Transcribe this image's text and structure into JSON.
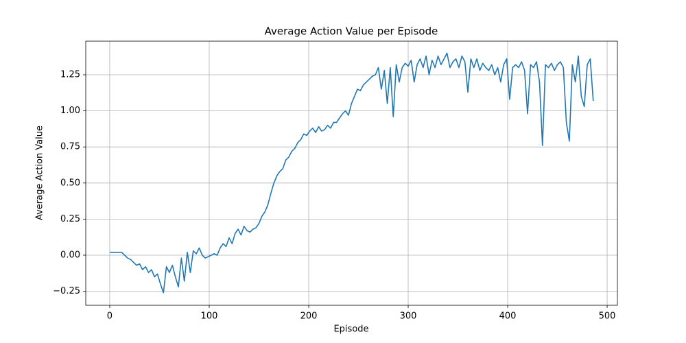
{
  "chart_data": {
    "type": "line",
    "title": "Average Action Value per Episode",
    "xlabel": "Episode",
    "ylabel": "Average Action Value",
    "x": [
      0,
      3,
      6,
      9,
      12,
      15,
      18,
      21,
      24,
      27,
      30,
      33,
      36,
      39,
      42,
      45,
      48,
      51,
      54,
      57,
      60,
      63,
      66,
      69,
      72,
      75,
      78,
      81,
      84,
      87,
      90,
      93,
      96,
      99,
      102,
      105,
      108,
      111,
      114,
      117,
      120,
      123,
      126,
      129,
      132,
      135,
      138,
      141,
      144,
      147,
      150,
      153,
      156,
      159,
      162,
      165,
      168,
      171,
      174,
      177,
      180,
      183,
      186,
      189,
      192,
      195,
      198,
      201,
      204,
      207,
      210,
      213,
      216,
      219,
      222,
      225,
      228,
      231,
      234,
      237,
      240,
      243,
      246,
      249,
      252,
      255,
      258,
      261,
      264,
      267,
      270,
      273,
      276,
      279,
      282,
      285,
      288,
      291,
      294,
      297,
      300,
      303,
      306,
      309,
      312,
      315,
      318,
      321,
      324,
      327,
      330,
      333,
      336,
      339,
      342,
      345,
      348,
      351,
      354,
      357,
      360,
      363,
      366,
      369,
      372,
      375,
      378,
      381,
      384,
      387,
      390,
      393,
      396,
      399,
      402,
      405,
      408,
      411,
      414,
      417,
      420,
      423,
      426,
      429,
      432,
      435,
      438,
      441,
      444,
      447,
      450,
      453,
      456,
      459,
      462,
      465,
      468,
      471,
      474,
      477,
      480,
      483,
      486
    ],
    "values": [
      0.02,
      0.02,
      0.02,
      0.02,
      0.02,
      0.0,
      -0.02,
      -0.03,
      -0.05,
      -0.07,
      -0.06,
      -0.1,
      -0.08,
      -0.12,
      -0.1,
      -0.15,
      -0.13,
      -0.2,
      -0.26,
      -0.08,
      -0.12,
      -0.07,
      -0.15,
      -0.22,
      -0.02,
      -0.18,
      0.02,
      -0.12,
      0.03,
      0.01,
      0.05,
      0.0,
      -0.02,
      -0.01,
      0.0,
      0.01,
      0.0,
      0.05,
      0.08,
      0.06,
      0.12,
      0.08,
      0.15,
      0.18,
      0.14,
      0.2,
      0.17,
      0.16,
      0.18,
      0.19,
      0.22,
      0.27,
      0.3,
      0.35,
      0.43,
      0.5,
      0.55,
      0.58,
      0.6,
      0.66,
      0.68,
      0.72,
      0.74,
      0.78,
      0.8,
      0.84,
      0.83,
      0.86,
      0.88,
      0.85,
      0.89,
      0.86,
      0.87,
      0.9,
      0.88,
      0.92,
      0.92,
      0.95,
      0.98,
      1.0,
      0.97,
      1.05,
      1.1,
      1.15,
      1.14,
      1.18,
      1.2,
      1.22,
      1.24,
      1.25,
      1.3,
      1.15,
      1.28,
      1.05,
      1.3,
      0.96,
      1.32,
      1.2,
      1.3,
      1.33,
      1.31,
      1.35,
      1.2,
      1.32,
      1.36,
      1.3,
      1.38,
      1.25,
      1.35,
      1.3,
      1.38,
      1.32,
      1.36,
      1.4,
      1.3,
      1.34,
      1.36,
      1.3,
      1.38,
      1.34,
      1.13,
      1.36,
      1.3,
      1.36,
      1.28,
      1.33,
      1.3,
      1.28,
      1.32,
      1.25,
      1.3,
      1.2,
      1.32,
      1.36,
      1.08,
      1.3,
      1.32,
      1.3,
      1.34,
      1.28,
      0.98,
      1.32,
      1.3,
      1.34,
      1.2,
      0.76,
      1.32,
      1.3,
      1.33,
      1.28,
      1.32,
      1.34,
      1.3,
      0.92,
      0.79,
      1.32,
      1.2,
      1.38,
      1.1,
      1.03,
      1.32,
      1.36,
      1.07
    ],
    "color": "#1f77b4",
    "xlim": [
      -24.1,
      510.3
    ],
    "xticks": [
      0,
      100,
      200,
      300,
      400,
      500
    ],
    "ylim": [
      -0.347,
      1.483
    ],
    "yticks": [
      {
        "value": -0.25,
        "label": "−0.25"
      },
      {
        "value": 0,
        "label": "0.00"
      },
      {
        "value": 0.25,
        "label": "0.25"
      },
      {
        "value": 0.5,
        "label": "0.50"
      },
      {
        "value": 0.75,
        "label": "0.75"
      },
      {
        "value": 1,
        "label": "1.00"
      },
      {
        "value": 1.25,
        "label": "1.25"
      }
    ],
    "grid": true
  }
}
